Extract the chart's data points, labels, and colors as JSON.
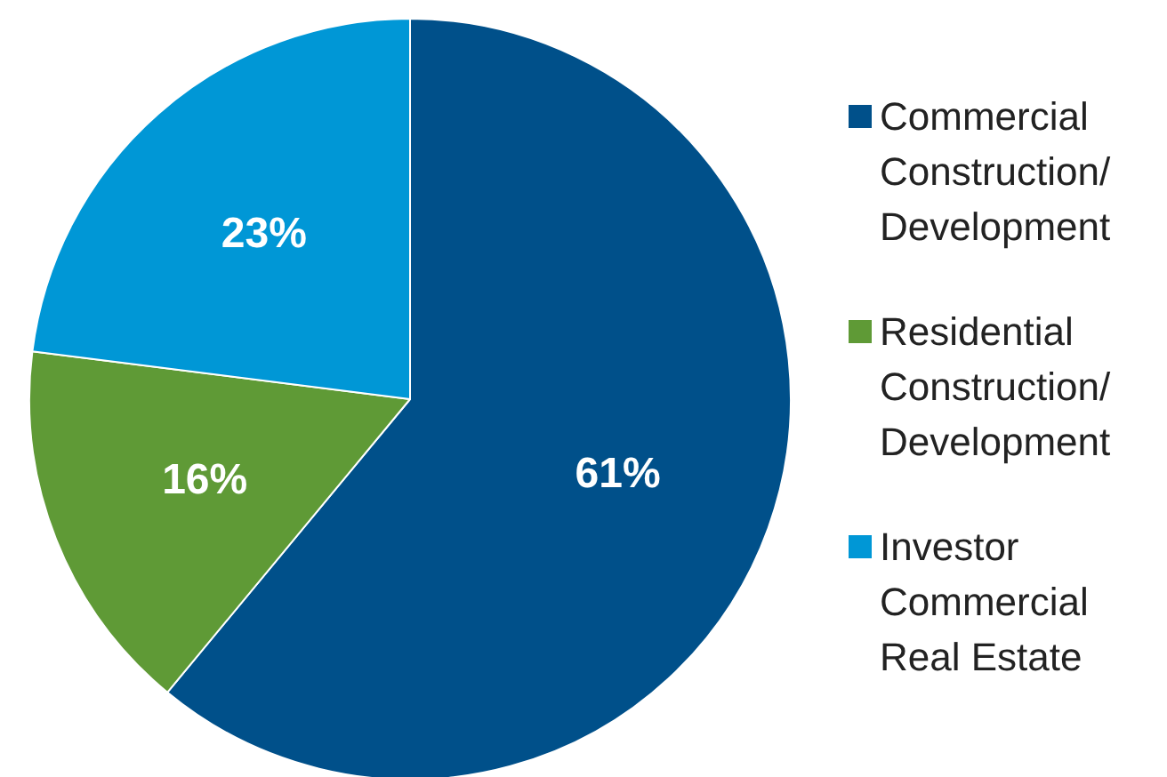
{
  "chart_data": {
    "type": "pie",
    "categories": [
      "Commercial Construction/ Development",
      "Residential Construction/ Development",
      "Investor Commercial Real Estate"
    ],
    "values": [
      61,
      16,
      23
    ],
    "colors": [
      "#00508a",
      "#5f9a36",
      "#0097d6"
    ],
    "value_labels": [
      "61%",
      "16%",
      "23%"
    ],
    "legend": "right"
  }
}
